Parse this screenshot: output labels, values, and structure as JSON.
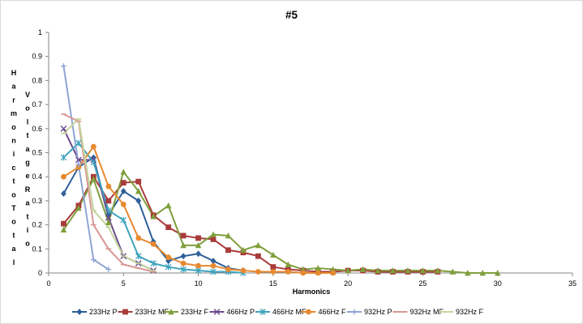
{
  "chart_data": {
    "type": "line",
    "title": "#5",
    "xlabel": "Harmonics",
    "ylabel": "Harmonic to Total Voltage Ratio",
    "xlim": [
      0,
      35
    ],
    "ylim": [
      0,
      1
    ],
    "xticks": [
      0,
      5,
      10,
      15,
      20,
      25,
      30,
      35
    ],
    "yticks": [
      0,
      0.1,
      0.2,
      0.3,
      0.4,
      0.5,
      0.6,
      0.7,
      0.8,
      0.9,
      1
    ],
    "grid": false,
    "legend": "bottom",
    "series": [
      {
        "name": "233Hz P",
        "color": "#2e5f99",
        "marker": "diamond",
        "points": [
          [
            1,
            0.33
          ],
          [
            2,
            0.44
          ],
          [
            3,
            0.48
          ],
          [
            4,
            0.24
          ],
          [
            5,
            0.34
          ],
          [
            6,
            0.3
          ],
          [
            7,
            0.13
          ],
          [
            8,
            0.05
          ],
          [
            9,
            0.07
          ],
          [
            10,
            0.08
          ],
          [
            11,
            0.05
          ],
          [
            12,
            0.02
          ],
          [
            13,
            0.01
          ]
        ]
      },
      {
        "name": "233Hz MF",
        "color": "#a83b39",
        "marker": "square",
        "points": [
          [
            1,
            0.205
          ],
          [
            2,
            0.28
          ],
          [
            3,
            0.4
          ],
          [
            4,
            0.3
          ],
          [
            5,
            0.375
          ],
          [
            6,
            0.38
          ],
          [
            7,
            0.24
          ],
          [
            8,
            0.19
          ],
          [
            9,
            0.155
          ],
          [
            10,
            0.145
          ],
          [
            11,
            0.14
          ],
          [
            12,
            0.095
          ],
          [
            13,
            0.085
          ],
          [
            14,
            0.07
          ],
          [
            15,
            0.025
          ],
          [
            16,
            0.015
          ],
          [
            17,
            0.01
          ],
          [
            18,
            0.005
          ],
          [
            19,
            0.005
          ],
          [
            20,
            0.01
          ],
          [
            21,
            0.01
          ],
          [
            22,
            0.005
          ],
          [
            23,
            0.005
          ],
          [
            24,
            0.005
          ],
          [
            25,
            0.005
          ],
          [
            26,
            0.005
          ]
        ]
      },
      {
        "name": "233Hz F",
        "color": "#7f9f3d",
        "marker": "triangle",
        "points": [
          [
            1,
            0.18
          ],
          [
            2,
            0.27
          ],
          [
            3,
            0.39
          ],
          [
            4,
            0.21
          ],
          [
            5,
            0.42
          ],
          [
            6,
            0.34
          ],
          [
            7,
            0.235
          ],
          [
            8,
            0.28
          ],
          [
            9,
            0.115
          ],
          [
            10,
            0.115
          ],
          [
            11,
            0.16
          ],
          [
            12,
            0.155
          ],
          [
            13,
            0.095
          ],
          [
            14,
            0.115
          ],
          [
            15,
            0.075
          ],
          [
            16,
            0.035
          ],
          [
            17,
            0.015
          ],
          [
            18,
            0.02
          ],
          [
            19,
            0.015
          ],
          [
            20,
            0.01
          ],
          [
            21,
            0.015
          ],
          [
            22,
            0.01
          ],
          [
            23,
            0.01
          ],
          [
            24,
            0.01
          ],
          [
            25,
            0.01
          ],
          [
            26,
            0.01
          ],
          [
            27,
            0.005
          ],
          [
            28,
            0.0
          ],
          [
            29,
            0.0
          ],
          [
            30,
            0.0
          ]
        ]
      },
      {
        "name": "466Hz P",
        "color": "#6a4a8c",
        "marker": "x",
        "points": [
          [
            1,
            0.6
          ],
          [
            2,
            0.47
          ],
          [
            3,
            0.47
          ],
          [
            4,
            0.23
          ],
          [
            5,
            0.07
          ],
          [
            6,
            0.04
          ],
          [
            7,
            0.01
          ]
        ]
      },
      {
        "name": "466Hz MF",
        "color": "#3ea3bd",
        "marker": "star",
        "points": [
          [
            1,
            0.48
          ],
          [
            2,
            0.54
          ],
          [
            3,
            0.46
          ],
          [
            4,
            0.26
          ],
          [
            5,
            0.22
          ],
          [
            6,
            0.07
          ],
          [
            7,
            0.04
          ],
          [
            8,
            0.025
          ],
          [
            9,
            0.015
          ],
          [
            10,
            0.01
          ],
          [
            11,
            0.005
          ],
          [
            12,
            0.005
          ],
          [
            13,
            0.0
          ]
        ]
      },
      {
        "name": "466Hz F",
        "color": "#e7892f",
        "marker": "circle",
        "points": [
          [
            1,
            0.4
          ],
          [
            2,
            0.44
          ],
          [
            3,
            0.525
          ],
          [
            4,
            0.36
          ],
          [
            5,
            0.285
          ],
          [
            6,
            0.145
          ],
          [
            7,
            0.12
          ],
          [
            8,
            0.065
          ],
          [
            9,
            0.04
          ],
          [
            10,
            0.03
          ],
          [
            11,
            0.03
          ],
          [
            12,
            0.015
          ],
          [
            13,
            0.01
          ],
          [
            14,
            0.005
          ],
          [
            15,
            0.005
          ],
          [
            16,
            0.005
          ],
          [
            17,
            0.0
          ],
          [
            18,
            0.0
          ],
          [
            19,
            0.0
          ]
        ]
      },
      {
        "name": "932Hz P",
        "color": "#8fa4d3",
        "marker": "plus",
        "points": [
          [
            1,
            0.86
          ],
          [
            2,
            0.45
          ],
          [
            3,
            0.055
          ],
          [
            4,
            0.015
          ]
        ]
      },
      {
        "name": "932Hz MF",
        "color": "#d99694",
        "marker": "dash",
        "points": [
          [
            1,
            0.66
          ],
          [
            2,
            0.63
          ],
          [
            3,
            0.2
          ],
          [
            4,
            0.1
          ],
          [
            5,
            0.035
          ],
          [
            6,
            0.02
          ],
          [
            7,
            0.005
          ]
        ]
      },
      {
        "name": "932Hz F",
        "color": "#c3d69b",
        "marker": "dash",
        "points": [
          [
            1,
            0.58
          ],
          [
            2,
            0.64
          ],
          [
            3,
            0.26
          ],
          [
            4,
            0.19
          ],
          [
            5,
            0.07
          ],
          [
            6,
            0.04
          ],
          [
            7,
            0.01
          ]
        ]
      }
    ]
  }
}
